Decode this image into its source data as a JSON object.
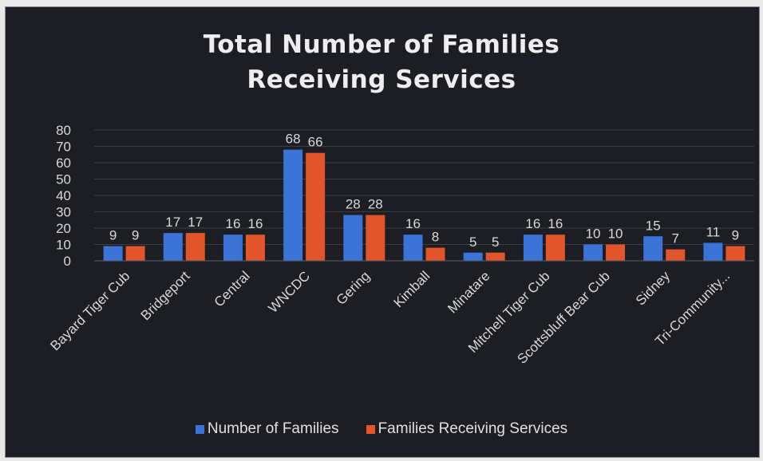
{
  "chart_data": {
    "type": "bar",
    "title_lines": [
      "Total Number of Families",
      "Receiving Services"
    ],
    "categories": [
      "Bayard Tiger Cub",
      "Bridgeport",
      "Central",
      "WNCDC",
      "Gering",
      "Kimball",
      "Minatare",
      "Mitchell Tiger Cub",
      "Scottsbluff Bear Cub",
      "Sidney",
      "Tri-Community..."
    ],
    "series": [
      {
        "name": "Number of Families",
        "color": "#3b73d6",
        "values": [
          9,
          17,
          16,
          68,
          28,
          16,
          5,
          16,
          10,
          15,
          11
        ]
      },
      {
        "name": "Families Receiving Services",
        "color": "#e2542a",
        "values": [
          9,
          17,
          16,
          66,
          28,
          8,
          5,
          16,
          10,
          7,
          9
        ]
      }
    ],
    "y_ticks": [
      0,
      10,
      20,
      30,
      40,
      50,
      60,
      70,
      80
    ],
    "ylim": [
      0,
      80
    ],
    "xlabel": "",
    "ylabel": "",
    "grid": true,
    "legend_position": "bottom",
    "data_labels": true
  }
}
